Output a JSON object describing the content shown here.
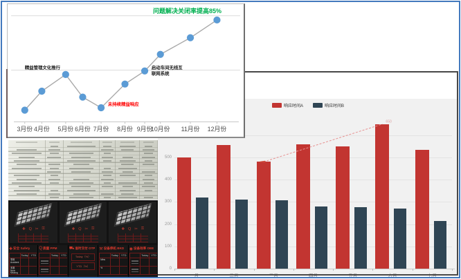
{
  "frame": {
    "border_color": "#4379bd"
  },
  "chart_data": [
    {
      "type": "line",
      "title": "问题解决关闭率提高85%",
      "title_color": "#00b050",
      "x": [
        "3月份",
        "4月份",
        "5月份",
        "6月份",
        "7月份",
        "8月份",
        "9月份",
        "10月份",
        "11月份",
        "12月份"
      ],
      "values": [
        9,
        25,
        39,
        20,
        11,
        31,
        42,
        56,
        70,
        85
      ],
      "ylim": [
        0,
        100
      ],
      "grid": "sparse-horizontal",
      "line_color": "#a8a8a8",
      "marker_color": "#5b9bd5",
      "annotations": [
        {
          "text": "精益管理文化推行",
          "color": "#1a1a1a",
          "attach": "5月份",
          "placement": "above-left"
        },
        {
          "text": "未持续精益响应",
          "color": "#ff0000",
          "attach": "7月份",
          "placement": "right"
        },
        {
          "text": "启动车间无线互\n联网系统",
          "color": "#1a1a1a",
          "attach": "9月份",
          "placement": "right"
        }
      ]
    },
    {
      "type": "bar",
      "categories": [
        "一月",
        "二月",
        "三月",
        "四月",
        "五月",
        "六月",
        "七月"
      ],
      "series": [
        {
          "name": "响应时间A",
          "color": "#c23531",
          "values": [
            500,
            555,
            480,
            560,
            550,
            650,
            535
          ]
        },
        {
          "name": "响应时间B",
          "color": "#2f4554",
          "values": [
            320,
            312,
            308,
            280,
            278,
            270,
            215
          ]
        }
      ],
      "y_ticks": [
        0,
        100,
        200,
        300,
        400,
        500
      ],
      "ylim": [
        0,
        620
      ],
      "grid": "on",
      "legend_position": "top-center",
      "trend": {
        "from_category": "三月",
        "to_category": "六月",
        "series": "响应时间A",
        "style": "dashed",
        "color": "#e79191",
        "label": "650"
      }
    }
  ],
  "table_photo": {
    "rows": 15,
    "columns": 6
  },
  "dashboard": {
    "tiles": [
      {
        "image": "isometric-rack-photo",
        "icons": [
          "plus-icon",
          "magnifier-icon",
          "scissors-icon",
          "lock-icon"
        ]
      },
      {
        "image": "isometric-rack-photo",
        "icons": [
          "plus-icon",
          "magnifier-icon",
          "scissors-icon",
          "lock-icon"
        ]
      },
      {
        "image": "isometric-rack-photo",
        "icons": [
          "plus-icon",
          "magnifier-icon",
          "scissors-icon",
          "lock-icon"
        ]
      }
    ],
    "kpi_panels": [
      {
        "icon": "cross-icon",
        "title_zh": "安全",
        "title_en": "Safety",
        "columns": [
          "Today",
          "YTD"
        ],
        "rows": [
          {
            "label_zh": "事故",
            "label_en": "Accident"
          },
          {
            "label_zh": "未遂",
            "label_en": "Near Missing"
          }
        ]
      },
      {
        "icon": "magnifier-icon",
        "title_zh": "质量",
        "title_en": "PPM",
        "columns": [
          "Today",
          "YTD"
        ],
        "rows": [
          {},
          {}
        ]
      },
      {
        "icon": "truck-icon",
        "title_zh": "准时交付",
        "title_en": "OTP",
        "lines": [
          "Today（%）",
          "YTD（%）"
        ]
      },
      {
        "icon": "wrench-icon",
        "title_zh": "设备停机",
        "title_en": "BKD",
        "columns": [
          "Today",
          "YTD"
        ],
        "rows": [
          {
            "label_en": "Mins"
          },
          {
            "label_en": "%"
          }
        ]
      },
      {
        "icon": "camera-icon",
        "title_zh": "设备效率",
        "title_en": "OEE",
        "columns": [
          "Today",
          "YTD"
        ],
        "rows": [
          {},
          {}
        ]
      }
    ]
  }
}
